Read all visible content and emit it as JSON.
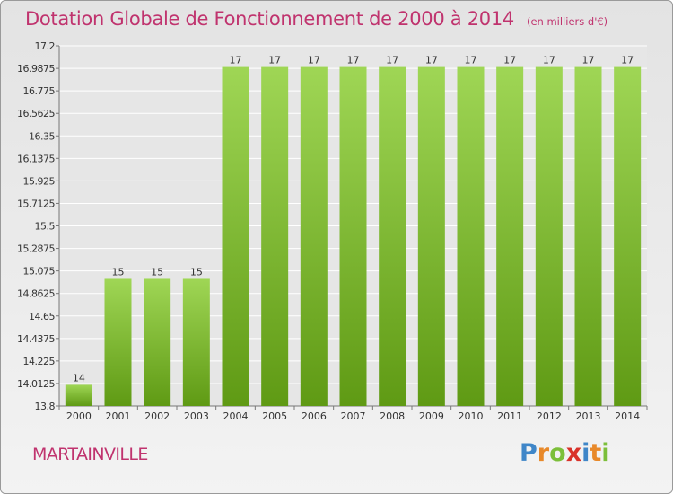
{
  "header": {
    "title": "Dotation Globale de Fonctionnement de 2000 à 2014",
    "subtitle": "(en milliers d'€)"
  },
  "footer": {
    "town": "MARTAINVILLE",
    "logo_letters": [
      "P",
      "r",
      "o",
      "x",
      "i",
      "t",
      "i"
    ]
  },
  "colors": {
    "title": "#c0336e",
    "bar_top": "#9fd655",
    "bar_bottom": "#5f9a14",
    "grid": "#ffffff",
    "plot_bg": "#e6e6e6",
    "logo": [
      "#3f86c8",
      "#e8892a",
      "#7cbf3a",
      "#d9322a",
      "#3f86c8",
      "#e8892a",
      "#7cbf3a"
    ]
  },
  "chart_data": {
    "type": "bar",
    "title": "Dotation Globale de Fonctionnement de 2000 à 2014",
    "subtitle": "(en milliers d'€)",
    "xlabel": "",
    "ylabel": "",
    "grid": true,
    "categories": [
      "2000",
      "2001",
      "2002",
      "2003",
      "2004",
      "2005",
      "2006",
      "2007",
      "2008",
      "2009",
      "2010",
      "2011",
      "2012",
      "2013",
      "2014"
    ],
    "values": [
      14,
      15,
      15,
      15,
      17,
      17,
      17,
      17,
      17,
      17,
      17,
      17,
      17,
      17,
      17
    ],
    "data_labels": [
      "14",
      "15",
      "15",
      "15",
      "17",
      "17",
      "17",
      "17",
      "17",
      "17",
      "17",
      "17",
      "17",
      "17",
      "17"
    ],
    "ylim": [
      13.8,
      17.2
    ],
    "yticks": [
      13.8,
      14.0125,
      14.225,
      14.4375,
      14.65,
      14.8625,
      15.075,
      15.2875,
      15.5,
      15.7125,
      15.925,
      16.1375,
      16.35,
      16.5625,
      16.775,
      16.9875,
      17.2
    ],
    "ytick_labels": [
      "13.8",
      "14.0125",
      "14.225",
      "14.4375",
      "14.65",
      "14.8625",
      "15.075",
      "15.2875",
      "15.5",
      "15.7125",
      "15.925",
      "16.1375",
      "16.35",
      "16.5625",
      "16.775",
      "16.9875",
      "17.2"
    ]
  }
}
